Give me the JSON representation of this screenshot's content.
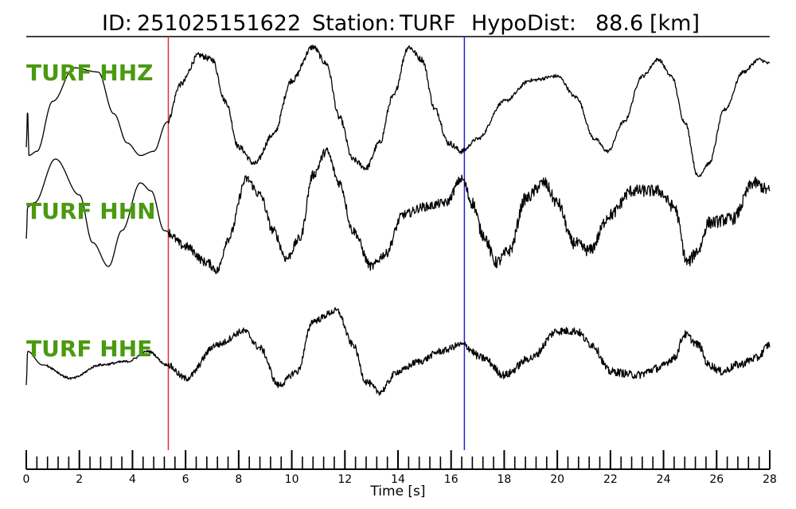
{
  "header": {
    "id_label": "ID:",
    "id_value": "251025151622",
    "station_label": "Station:",
    "station_value": "TURF",
    "hypodist_label": "HypoDist:",
    "hypodist_value": "88.6",
    "hypodist_unit": "[km]"
  },
  "chart_data": {
    "type": "line",
    "xlabel": "Time [s]",
    "xlim": [
      0,
      28
    ],
    "major_ticks": [
      0,
      2,
      4,
      6,
      8,
      10,
      12,
      14,
      16,
      18,
      20,
      22,
      24,
      26,
      28
    ],
    "minor_tick_step": 0.4,
    "tick_labels": [
      "0",
      "2",
      "4",
      "6",
      "8",
      "10",
      "12",
      "14",
      "16",
      "18",
      "20",
      "22",
      "24",
      "26",
      "28"
    ],
    "markers": [
      {
        "time": 5.35,
        "color": "#e03030"
      },
      {
        "time": 16.5,
        "color": "#2020e0"
      }
    ],
    "series": [
      {
        "name": "TURF HHZ",
        "noise": [
          [
            5.35,
            0.5
          ],
          [
            16.5,
            0.3
          ]
        ],
        "points": [
          [
            0,
            0
          ],
          [
            0.05,
            0.45
          ],
          [
            0.1,
            -0.1
          ],
          [
            0.4,
            -0.05
          ],
          [
            1,
            0.55
          ],
          [
            1.8,
            0.95
          ],
          [
            2.7,
            0.9
          ],
          [
            3.3,
            0.4
          ],
          [
            3.8,
            0.05
          ],
          [
            4.3,
            -0.1
          ],
          [
            4.8,
            -0.05
          ],
          [
            5.3,
            0.3
          ],
          [
            5.8,
            0.75
          ],
          [
            6.5,
            1.1
          ],
          [
            7.0,
            1.05
          ],
          [
            7.5,
            0.55
          ],
          [
            8.0,
            0.0
          ],
          [
            8.6,
            -0.2
          ],
          [
            9.3,
            0.15
          ],
          [
            10.0,
            0.8
          ],
          [
            10.8,
            1.2
          ],
          [
            11.3,
            1.0
          ],
          [
            11.8,
            0.35
          ],
          [
            12.3,
            -0.15
          ],
          [
            12.8,
            -0.25
          ],
          [
            13.3,
            0.05
          ],
          [
            13.8,
            0.6
          ],
          [
            14.4,
            1.2
          ],
          [
            14.9,
            1.05
          ],
          [
            15.4,
            0.45
          ],
          [
            15.9,
            0.05
          ],
          [
            16.4,
            -0.05
          ],
          [
            17.0,
            0.1
          ],
          [
            18.0,
            0.55
          ],
          [
            19.0,
            0.8
          ],
          [
            20.0,
            0.85
          ],
          [
            20.7,
            0.6
          ],
          [
            21.4,
            0.1
          ],
          [
            21.9,
            -0.05
          ],
          [
            22.5,
            0.3
          ],
          [
            23.2,
            0.85
          ],
          [
            23.8,
            1.05
          ],
          [
            24.3,
            0.85
          ],
          [
            24.8,
            0.3
          ],
          [
            25.3,
            -0.35
          ],
          [
            25.7,
            -0.2
          ],
          [
            26.3,
            0.45
          ],
          [
            27.0,
            0.9
          ],
          [
            27.6,
            1.05
          ],
          [
            28,
            1.0
          ]
        ]
      },
      {
        "name": "TURF HHN",
        "noise": [
          [
            5.35,
            0.8
          ],
          [
            16.5,
            1.1
          ]
        ],
        "points": [
          [
            0,
            0.45
          ],
          [
            0.05,
            0.85
          ],
          [
            0.3,
            0.9
          ],
          [
            1.1,
            1.45
          ],
          [
            2.0,
            1.0
          ],
          [
            2.5,
            0.4
          ],
          [
            3.1,
            0.1
          ],
          [
            3.6,
            0.55
          ],
          [
            4.3,
            1.15
          ],
          [
            4.7,
            1.05
          ],
          [
            5.2,
            0.55
          ],
          [
            6.0,
            0.35
          ],
          [
            6.8,
            0.15
          ],
          [
            7.2,
            0.05
          ],
          [
            7.6,
            0.45
          ],
          [
            8.3,
            1.2
          ],
          [
            8.8,
            1.0
          ],
          [
            9.3,
            0.55
          ],
          [
            9.8,
            0.2
          ],
          [
            10.3,
            0.45
          ],
          [
            10.8,
            1.25
          ],
          [
            11.3,
            1.55
          ],
          [
            11.8,
            1.15
          ],
          [
            12.3,
            0.55
          ],
          [
            13.0,
            0.1
          ],
          [
            13.5,
            0.25
          ],
          [
            14.2,
            0.75
          ],
          [
            15.0,
            0.85
          ],
          [
            15.8,
            0.9
          ],
          [
            16.4,
            1.2
          ],
          [
            16.8,
            0.9
          ],
          [
            17.2,
            0.5
          ],
          [
            17.7,
            0.15
          ],
          [
            18.2,
            0.3
          ],
          [
            18.8,
            0.95
          ],
          [
            19.5,
            1.15
          ],
          [
            20.0,
            0.9
          ],
          [
            20.6,
            0.4
          ],
          [
            21.2,
            0.3
          ],
          [
            22.0,
            0.75
          ],
          [
            22.8,
            1.05
          ],
          [
            23.8,
            1.05
          ],
          [
            24.4,
            0.85
          ],
          [
            24.9,
            0.15
          ],
          [
            25.3,
            0.3
          ],
          [
            25.7,
            0.65
          ],
          [
            26.6,
            0.7
          ],
          [
            27.4,
            1.15
          ],
          [
            28,
            1.05
          ]
        ]
      },
      {
        "name": "TURF HHE",
        "noise": [
          [
            0.8,
            0.25
          ],
          [
            5.35,
            0.7
          ],
          [
            16.5,
            0.85
          ]
        ],
        "points": [
          [
            0,
            -0.05
          ],
          [
            0.05,
            0.45
          ],
          [
            0.6,
            0.25
          ],
          [
            1.7,
            0.05
          ],
          [
            2.8,
            0.25
          ],
          [
            3.8,
            0.3
          ],
          [
            4.6,
            0.45
          ],
          [
            5.3,
            0.25
          ],
          [
            6.0,
            0.05
          ],
          [
            7.2,
            0.55
          ],
          [
            8.2,
            0.75
          ],
          [
            8.8,
            0.5
          ],
          [
            9.5,
            -0.05
          ],
          [
            10.2,
            0.15
          ],
          [
            10.8,
            0.9
          ],
          [
            11.7,
            1.05
          ],
          [
            12.3,
            0.55
          ],
          [
            12.8,
            0.0
          ],
          [
            13.3,
            -0.15
          ],
          [
            14.0,
            0.15
          ],
          [
            14.8,
            0.3
          ],
          [
            15.6,
            0.45
          ],
          [
            16.4,
            0.55
          ],
          [
            17.2,
            0.35
          ],
          [
            18.0,
            0.1
          ],
          [
            19.0,
            0.35
          ],
          [
            20.0,
            0.75
          ],
          [
            20.7,
            0.75
          ],
          [
            21.3,
            0.55
          ],
          [
            22.0,
            0.15
          ],
          [
            23.0,
            0.1
          ],
          [
            23.8,
            0.2
          ],
          [
            24.4,
            0.35
          ],
          [
            24.8,
            0.7
          ],
          [
            25.3,
            0.55
          ],
          [
            25.7,
            0.25
          ],
          [
            26.2,
            0.15
          ],
          [
            26.8,
            0.25
          ],
          [
            27.5,
            0.35
          ],
          [
            28,
            0.55
          ]
        ]
      }
    ]
  }
}
